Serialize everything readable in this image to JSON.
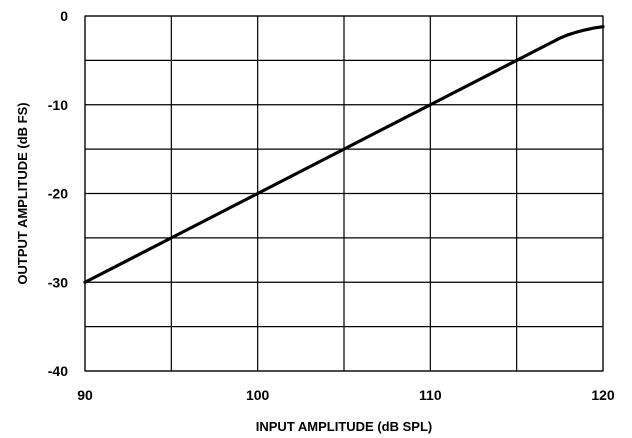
{
  "chart_data": {
    "type": "line",
    "title": "",
    "xlabel": "INPUT AMPLITUDE (dB SPL)",
    "ylabel": "OUTPUT AMPLITUDE (dB FS)",
    "xlim": [
      90,
      120
    ],
    "ylim": [
      -40,
      0
    ],
    "x_ticks": [
      90,
      95,
      100,
      105,
      110,
      115,
      120
    ],
    "y_ticks": [
      -40,
      -35,
      -30,
      -25,
      -20,
      -15,
      -10,
      -5,
      0
    ],
    "x_tick_labels": [
      "90",
      "100",
      "110",
      "120"
    ],
    "y_tick_labels": [
      "0",
      "-10",
      "-20",
      "-30",
      "-40"
    ],
    "grid": true,
    "legend": "none",
    "series": [
      {
        "color": "#000000",
        "x": [
          90,
          95,
          100,
          105,
          110,
          115,
          116,
          117,
          117.5,
          118,
          118.5,
          119,
          119.5,
          120
        ],
        "y": [
          -30,
          -25,
          -20,
          -15,
          -10,
          -5,
          -4,
          -3,
          -2.5,
          -2.1,
          -1.8,
          -1.55,
          -1.35,
          -1.2
        ]
      }
    ]
  }
}
